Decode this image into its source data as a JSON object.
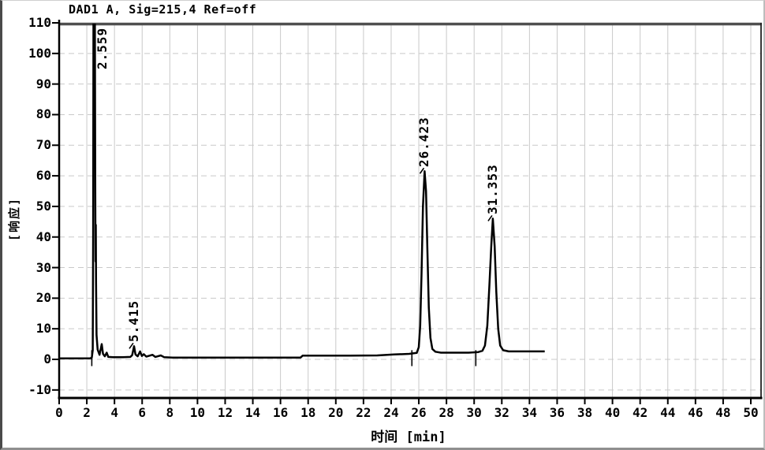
{
  "chart_data": {
    "type": "line",
    "title": "DAD1 A, Sig=215,4 Ref=off",
    "xlabel": "时间 [min]",
    "ylabel": "[响应]",
    "xlim": [
      0,
      50.8
    ],
    "ylim": [
      -12.6,
      110
    ],
    "grid": true,
    "legend": false,
    "x_ticks": [
      0,
      2,
      4,
      6,
      8,
      10,
      12,
      14,
      16,
      18,
      20,
      22,
      24,
      26,
      28,
      30,
      32,
      34,
      36,
      38,
      40,
      42,
      44,
      46,
      48,
      50
    ],
    "y_ticks": [
      110,
      100,
      90,
      80,
      70,
      60,
      50,
      40,
      30,
      20,
      10,
      0,
      -10
    ],
    "series": [
      {
        "name": "DAD1 A, Sig=215,4 Ref=off",
        "points": [
          [
            0,
            0.3
          ],
          [
            0.9,
            0.3
          ],
          [
            1.7,
            0.3
          ],
          [
            2.25,
            0.35
          ],
          [
            2.36,
            0.6
          ],
          [
            2.43,
            3
          ],
          [
            2.46,
            40
          ],
          [
            2.48,
            112
          ],
          [
            2.58,
            112
          ],
          [
            2.61,
            55
          ],
          [
            2.63,
            32
          ],
          [
            2.65,
            44
          ],
          [
            2.67,
            25
          ],
          [
            2.7,
            8
          ],
          [
            2.78,
            3.2
          ],
          [
            2.92,
            1.5
          ],
          [
            3.08,
            5
          ],
          [
            3.17,
            1.8
          ],
          [
            3.3,
            1
          ],
          [
            3.44,
            2.2
          ],
          [
            3.55,
            0.8
          ],
          [
            3.9,
            0.7
          ],
          [
            4.6,
            0.7
          ],
          [
            5.15,
            0.8
          ],
          [
            5.28,
            1.4
          ],
          [
            5.415,
            4.3
          ],
          [
            5.52,
            1.6
          ],
          [
            5.68,
            1
          ],
          [
            5.85,
            2.6
          ],
          [
            5.98,
            1.1
          ],
          [
            6.12,
            1.7
          ],
          [
            6.3,
            0.9
          ],
          [
            6.75,
            1.5
          ],
          [
            6.95,
            0.8
          ],
          [
            7.35,
            1.3
          ],
          [
            7.6,
            0.7
          ],
          [
            8.2,
            0.6
          ],
          [
            9.5,
            0.6
          ],
          [
            11,
            0.6
          ],
          [
            13,
            0.6
          ],
          [
            15,
            0.6
          ],
          [
            16.8,
            0.6
          ],
          [
            17.45,
            0.6
          ],
          [
            17.6,
            1.2
          ],
          [
            19,
            1.2
          ],
          [
            21,
            1.2
          ],
          [
            23,
            1.3
          ],
          [
            24.2,
            1.6
          ],
          [
            25.3,
            1.8
          ],
          [
            25.85,
            2.1
          ],
          [
            26,
            4
          ],
          [
            26.1,
            11
          ],
          [
            26.2,
            28
          ],
          [
            26.3,
            50
          ],
          [
            26.42,
            61.5
          ],
          [
            26.52,
            55
          ],
          [
            26.62,
            36
          ],
          [
            26.72,
            17
          ],
          [
            26.84,
            7
          ],
          [
            26.98,
            3.4
          ],
          [
            27.2,
            2.5
          ],
          [
            27.6,
            2.2
          ],
          [
            28.6,
            2.2
          ],
          [
            29.6,
            2.2
          ],
          [
            30.3,
            2.4
          ],
          [
            30.6,
            2.8
          ],
          [
            30.78,
            4.5
          ],
          [
            30.95,
            11
          ],
          [
            31.1,
            24
          ],
          [
            31.25,
            38
          ],
          [
            31.35,
            46
          ],
          [
            31.48,
            37
          ],
          [
            31.6,
            22
          ],
          [
            31.74,
            10
          ],
          [
            31.88,
            4.5
          ],
          [
            32.1,
            3
          ],
          [
            32.5,
            2.6
          ],
          [
            33.5,
            2.6
          ],
          [
            34.4,
            2.6
          ],
          [
            35.1,
            2.6
          ]
        ]
      }
    ],
    "peaks": [
      {
        "label": "2.559",
        "time": 2.559,
        "apex": 110,
        "clipped": true
      },
      {
        "label": "5.415",
        "time": 5.415,
        "apex": 4.3,
        "clipped": false
      },
      {
        "label": "26.423",
        "time": 26.423,
        "apex": 61.5,
        "clipped": false
      },
      {
        "label": "31.353",
        "time": 31.353,
        "apex": 46,
        "clipped": false
      }
    ],
    "integration_marks": [
      2.36,
      25.5,
      30.12
    ],
    "colors": {
      "trace": "#000000",
      "grid": "#c9c9c9",
      "frame": "#000000",
      "top_border": "#4f4f4f",
      "background": "#ffffff",
      "text": "#000000"
    }
  }
}
